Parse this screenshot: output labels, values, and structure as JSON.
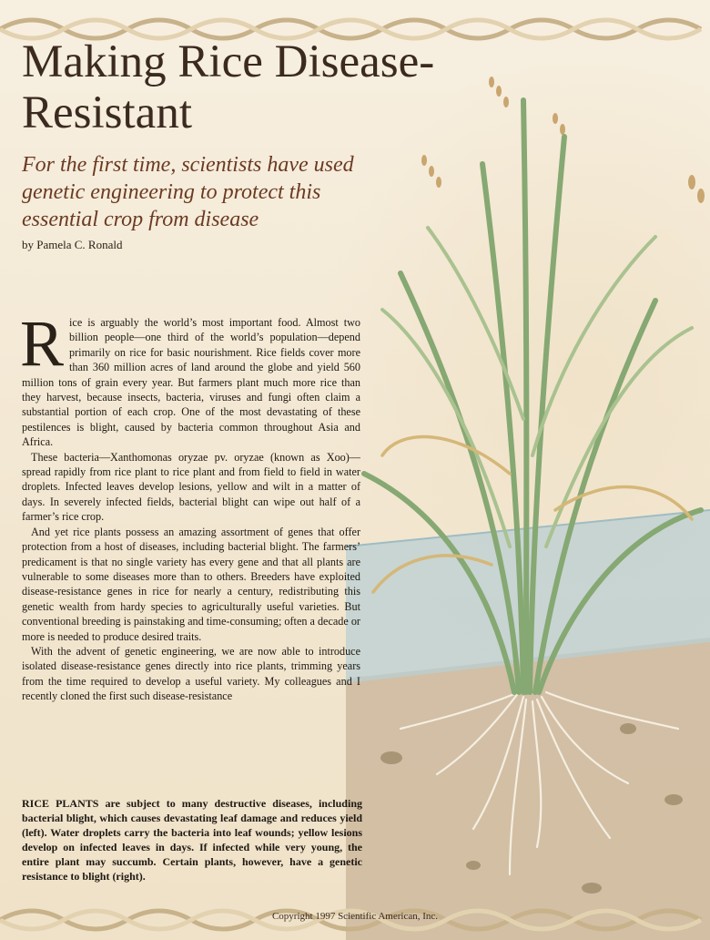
{
  "article": {
    "title": "Making Rice Disease-Resistant",
    "subtitle": "For the first time, scientists have used genetic engineering to protect this essential crop from disease",
    "byline": "by Pamela C. Ronald",
    "dropcap": "R",
    "paragraphs": [
      "ice is arguably the world’s most important food. Almost two billion people—one third of the world’s population—depend primarily on rice for basic nourishment. Rice fields cover more than 360 million acres of land around the globe and yield 560 million tons of grain every year. But farmers plant much more rice than they harvest, because insects, bacteria, viruses and fungi often claim a substantial portion of each crop. One of the most devastating of these pestilences is blight, caused by bacteria common throughout Asia and Africa.",
      "These bacteria—Xanthomonas oryzae pv. oryzae (known as Xoo)—spread rapidly from rice plant to rice plant and from field to field in water droplets. Infected leaves develop lesions, yellow and wilt in a matter of days. In severely infected fields, bacterial blight can wipe out half of a farmer’s rice crop.",
      "And yet rice plants possess an amazing assortment of genes that offer protection from a host of diseases, including bacterial blight. The farmers’ predicament is that no single variety has every gene and that all plants are vulnerable to some diseases more than to others. Breeders have exploited disease-resistance genes in rice for nearly a century, redistributing this genetic wealth from hardy species to agriculturally useful varieties. But conventional breeding is painstaking and time-consuming; often a decade or more is needed to produce desired traits.",
      "With the advent of genetic engineering, we are now able to introduce isolated disease-resistance genes directly into rice plants, trimming years from the time required to develop a useful variety. My colleagues and I recently cloned the first such disease-resistance"
    ]
  },
  "caption": {
    "lead": "RICE PLANTS",
    "text": " are subject to many destructive diseases, including bacterial blight, which causes devastating leaf damage and reduces yield (left). Water droplets carry the bacteria into leaf wounds; yellow lesions develop on infected leaves in days. If infected while very young, the entire plant may succumb. Certain plants, however, have a genetic resistance to blight (right)."
  },
  "footer": {
    "copyright": "Copyright 1997 Scientific American, Inc."
  },
  "colors": {
    "background": "#f4ead8",
    "title": "#3b2a1f",
    "subtitle": "#6b3a22",
    "leaf": "#8fb07a",
    "leaf_dry": "#d6b777",
    "water": "#b9cfd2",
    "soil": "#c9b79c"
  }
}
